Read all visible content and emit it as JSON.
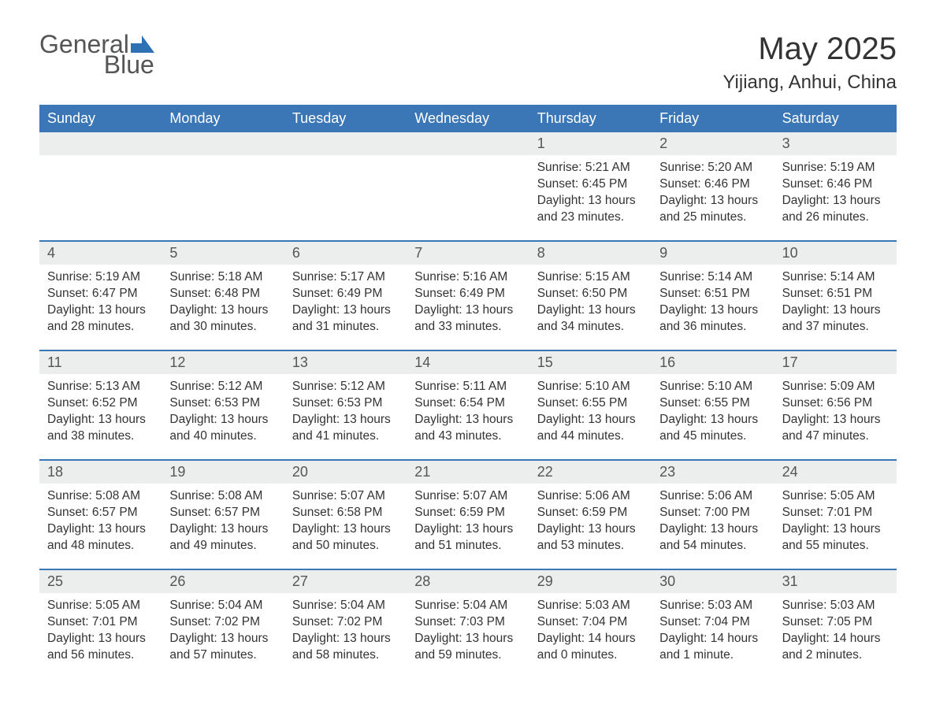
{
  "logo": {
    "word1": "General",
    "word2": "Blue"
  },
  "title": {
    "month": "May 2025",
    "location": "Yijiang, Anhui, China"
  },
  "colors": {
    "header_bg": "#3b77b6",
    "header_text": "#ffffff",
    "daynum_bg": "#eceded",
    "border": "#3b77b6",
    "body_text": "#333333",
    "logo_gray": "#555555",
    "logo_blue": "#2f71b5"
  },
  "weekdays": [
    "Sunday",
    "Monday",
    "Tuesday",
    "Wednesday",
    "Thursday",
    "Friday",
    "Saturday"
  ],
  "weeks": [
    {
      "days": [
        {
          "num": "",
          "sunrise": "",
          "sunset": "",
          "daylight": ""
        },
        {
          "num": "",
          "sunrise": "",
          "sunset": "",
          "daylight": ""
        },
        {
          "num": "",
          "sunrise": "",
          "sunset": "",
          "daylight": ""
        },
        {
          "num": "",
          "sunrise": "",
          "sunset": "",
          "daylight": ""
        },
        {
          "num": "1",
          "sunrise": "Sunrise: 5:21 AM",
          "sunset": "Sunset: 6:45 PM",
          "daylight": "Daylight: 13 hours and 23 minutes."
        },
        {
          "num": "2",
          "sunrise": "Sunrise: 5:20 AM",
          "sunset": "Sunset: 6:46 PM",
          "daylight": "Daylight: 13 hours and 25 minutes."
        },
        {
          "num": "3",
          "sunrise": "Sunrise: 5:19 AM",
          "sunset": "Sunset: 6:46 PM",
          "daylight": "Daylight: 13 hours and 26 minutes."
        }
      ]
    },
    {
      "days": [
        {
          "num": "4",
          "sunrise": "Sunrise: 5:19 AM",
          "sunset": "Sunset: 6:47 PM",
          "daylight": "Daylight: 13 hours and 28 minutes."
        },
        {
          "num": "5",
          "sunrise": "Sunrise: 5:18 AM",
          "sunset": "Sunset: 6:48 PM",
          "daylight": "Daylight: 13 hours and 30 minutes."
        },
        {
          "num": "6",
          "sunrise": "Sunrise: 5:17 AM",
          "sunset": "Sunset: 6:49 PM",
          "daylight": "Daylight: 13 hours and 31 minutes."
        },
        {
          "num": "7",
          "sunrise": "Sunrise: 5:16 AM",
          "sunset": "Sunset: 6:49 PM",
          "daylight": "Daylight: 13 hours and 33 minutes."
        },
        {
          "num": "8",
          "sunrise": "Sunrise: 5:15 AM",
          "sunset": "Sunset: 6:50 PM",
          "daylight": "Daylight: 13 hours and 34 minutes."
        },
        {
          "num": "9",
          "sunrise": "Sunrise: 5:14 AM",
          "sunset": "Sunset: 6:51 PM",
          "daylight": "Daylight: 13 hours and 36 minutes."
        },
        {
          "num": "10",
          "sunrise": "Sunrise: 5:14 AM",
          "sunset": "Sunset: 6:51 PM",
          "daylight": "Daylight: 13 hours and 37 minutes."
        }
      ]
    },
    {
      "days": [
        {
          "num": "11",
          "sunrise": "Sunrise: 5:13 AM",
          "sunset": "Sunset: 6:52 PM",
          "daylight": "Daylight: 13 hours and 38 minutes."
        },
        {
          "num": "12",
          "sunrise": "Sunrise: 5:12 AM",
          "sunset": "Sunset: 6:53 PM",
          "daylight": "Daylight: 13 hours and 40 minutes."
        },
        {
          "num": "13",
          "sunrise": "Sunrise: 5:12 AM",
          "sunset": "Sunset: 6:53 PM",
          "daylight": "Daylight: 13 hours and 41 minutes."
        },
        {
          "num": "14",
          "sunrise": "Sunrise: 5:11 AM",
          "sunset": "Sunset: 6:54 PM",
          "daylight": "Daylight: 13 hours and 43 minutes."
        },
        {
          "num": "15",
          "sunrise": "Sunrise: 5:10 AM",
          "sunset": "Sunset: 6:55 PM",
          "daylight": "Daylight: 13 hours and 44 minutes."
        },
        {
          "num": "16",
          "sunrise": "Sunrise: 5:10 AM",
          "sunset": "Sunset: 6:55 PM",
          "daylight": "Daylight: 13 hours and 45 minutes."
        },
        {
          "num": "17",
          "sunrise": "Sunrise: 5:09 AM",
          "sunset": "Sunset: 6:56 PM",
          "daylight": "Daylight: 13 hours and 47 minutes."
        }
      ]
    },
    {
      "days": [
        {
          "num": "18",
          "sunrise": "Sunrise: 5:08 AM",
          "sunset": "Sunset: 6:57 PM",
          "daylight": "Daylight: 13 hours and 48 minutes."
        },
        {
          "num": "19",
          "sunrise": "Sunrise: 5:08 AM",
          "sunset": "Sunset: 6:57 PM",
          "daylight": "Daylight: 13 hours and 49 minutes."
        },
        {
          "num": "20",
          "sunrise": "Sunrise: 5:07 AM",
          "sunset": "Sunset: 6:58 PM",
          "daylight": "Daylight: 13 hours and 50 minutes."
        },
        {
          "num": "21",
          "sunrise": "Sunrise: 5:07 AM",
          "sunset": "Sunset: 6:59 PM",
          "daylight": "Daylight: 13 hours and 51 minutes."
        },
        {
          "num": "22",
          "sunrise": "Sunrise: 5:06 AM",
          "sunset": "Sunset: 6:59 PM",
          "daylight": "Daylight: 13 hours and 53 minutes."
        },
        {
          "num": "23",
          "sunrise": "Sunrise: 5:06 AM",
          "sunset": "Sunset: 7:00 PM",
          "daylight": "Daylight: 13 hours and 54 minutes."
        },
        {
          "num": "24",
          "sunrise": "Sunrise: 5:05 AM",
          "sunset": "Sunset: 7:01 PM",
          "daylight": "Daylight: 13 hours and 55 minutes."
        }
      ]
    },
    {
      "days": [
        {
          "num": "25",
          "sunrise": "Sunrise: 5:05 AM",
          "sunset": "Sunset: 7:01 PM",
          "daylight": "Daylight: 13 hours and 56 minutes."
        },
        {
          "num": "26",
          "sunrise": "Sunrise: 5:04 AM",
          "sunset": "Sunset: 7:02 PM",
          "daylight": "Daylight: 13 hours and 57 minutes."
        },
        {
          "num": "27",
          "sunrise": "Sunrise: 5:04 AM",
          "sunset": "Sunset: 7:02 PM",
          "daylight": "Daylight: 13 hours and 58 minutes."
        },
        {
          "num": "28",
          "sunrise": "Sunrise: 5:04 AM",
          "sunset": "Sunset: 7:03 PM",
          "daylight": "Daylight: 13 hours and 59 minutes."
        },
        {
          "num": "29",
          "sunrise": "Sunrise: 5:03 AM",
          "sunset": "Sunset: 7:04 PM",
          "daylight": "Daylight: 14 hours and 0 minutes."
        },
        {
          "num": "30",
          "sunrise": "Sunrise: 5:03 AM",
          "sunset": "Sunset: 7:04 PM",
          "daylight": "Daylight: 14 hours and 1 minute."
        },
        {
          "num": "31",
          "sunrise": "Sunrise: 5:03 AM",
          "sunset": "Sunset: 7:05 PM",
          "daylight": "Daylight: 14 hours and 2 minutes."
        }
      ]
    }
  ]
}
